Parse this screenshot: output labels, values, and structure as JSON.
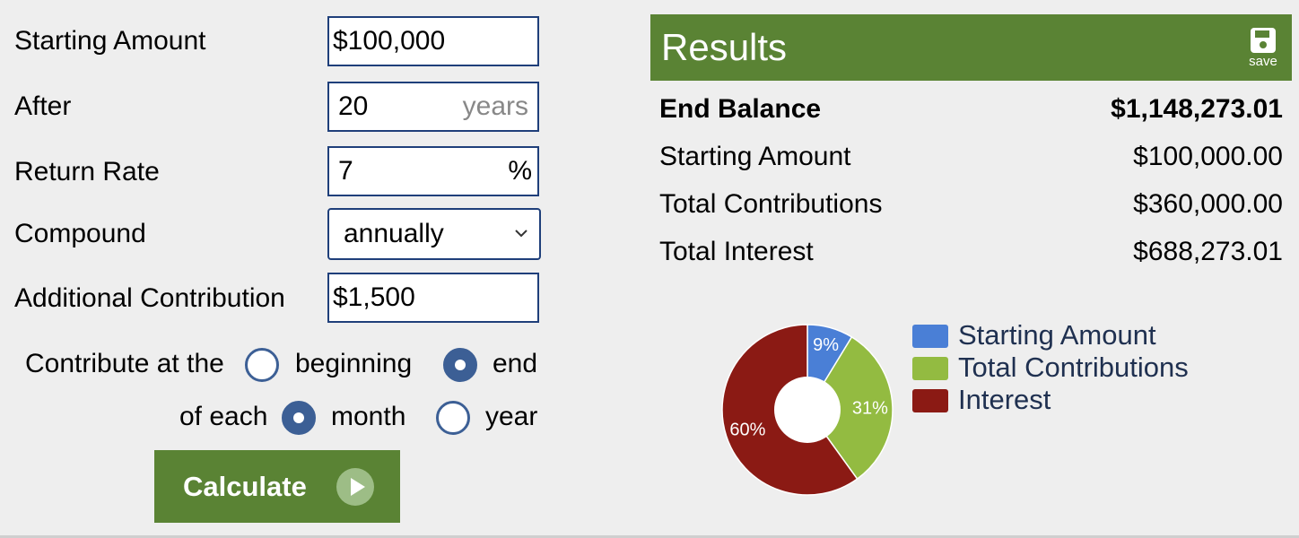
{
  "form": {
    "starting_amount": {
      "label": "Starting Amount",
      "value": "$100,000"
    },
    "after": {
      "label": "After",
      "value": "20",
      "suffix": "years"
    },
    "return_rate": {
      "label": "Return Rate",
      "value": "7",
      "suffix": "%"
    },
    "compound": {
      "label": "Compound",
      "value": "annually"
    },
    "additional_contribution": {
      "label": "Additional Contribution",
      "value": "$1,500"
    },
    "contribute_at": {
      "label": "Contribute at the",
      "options": [
        "beginning",
        "end"
      ],
      "selected": "end"
    },
    "of_each": {
      "label": "of each",
      "options": [
        "month",
        "year"
      ],
      "selected": "month"
    },
    "calculate_label": "Calculate"
  },
  "results": {
    "title": "Results",
    "save_label": "save",
    "rows": [
      {
        "label": "End Balance",
        "value": "$1,148,273.01"
      },
      {
        "label": "Starting Amount",
        "value": "$100,000.00"
      },
      {
        "label": "Total Contributions",
        "value": "$360,000.00"
      },
      {
        "label": "Total Interest",
        "value": "$688,273.01"
      }
    ]
  },
  "colors": {
    "accent_green": "#5a8334",
    "radio_blue": "#3c5f95",
    "starting_amount": "#4a7fd6",
    "total_contributions": "#93bb41",
    "interest": "#8b1a14"
  },
  "chart_data": {
    "type": "pie",
    "series": [
      {
        "name": "Starting Amount",
        "value": 100000.0,
        "label": "9%",
        "color": "#4a7fd6"
      },
      {
        "name": "Total Contributions",
        "value": 360000.0,
        "label": "31%",
        "color": "#93bb41"
      },
      {
        "name": "Interest",
        "value": 688273.01,
        "label": "60%",
        "color": "#8b1a14"
      }
    ],
    "legend_position": "right"
  }
}
